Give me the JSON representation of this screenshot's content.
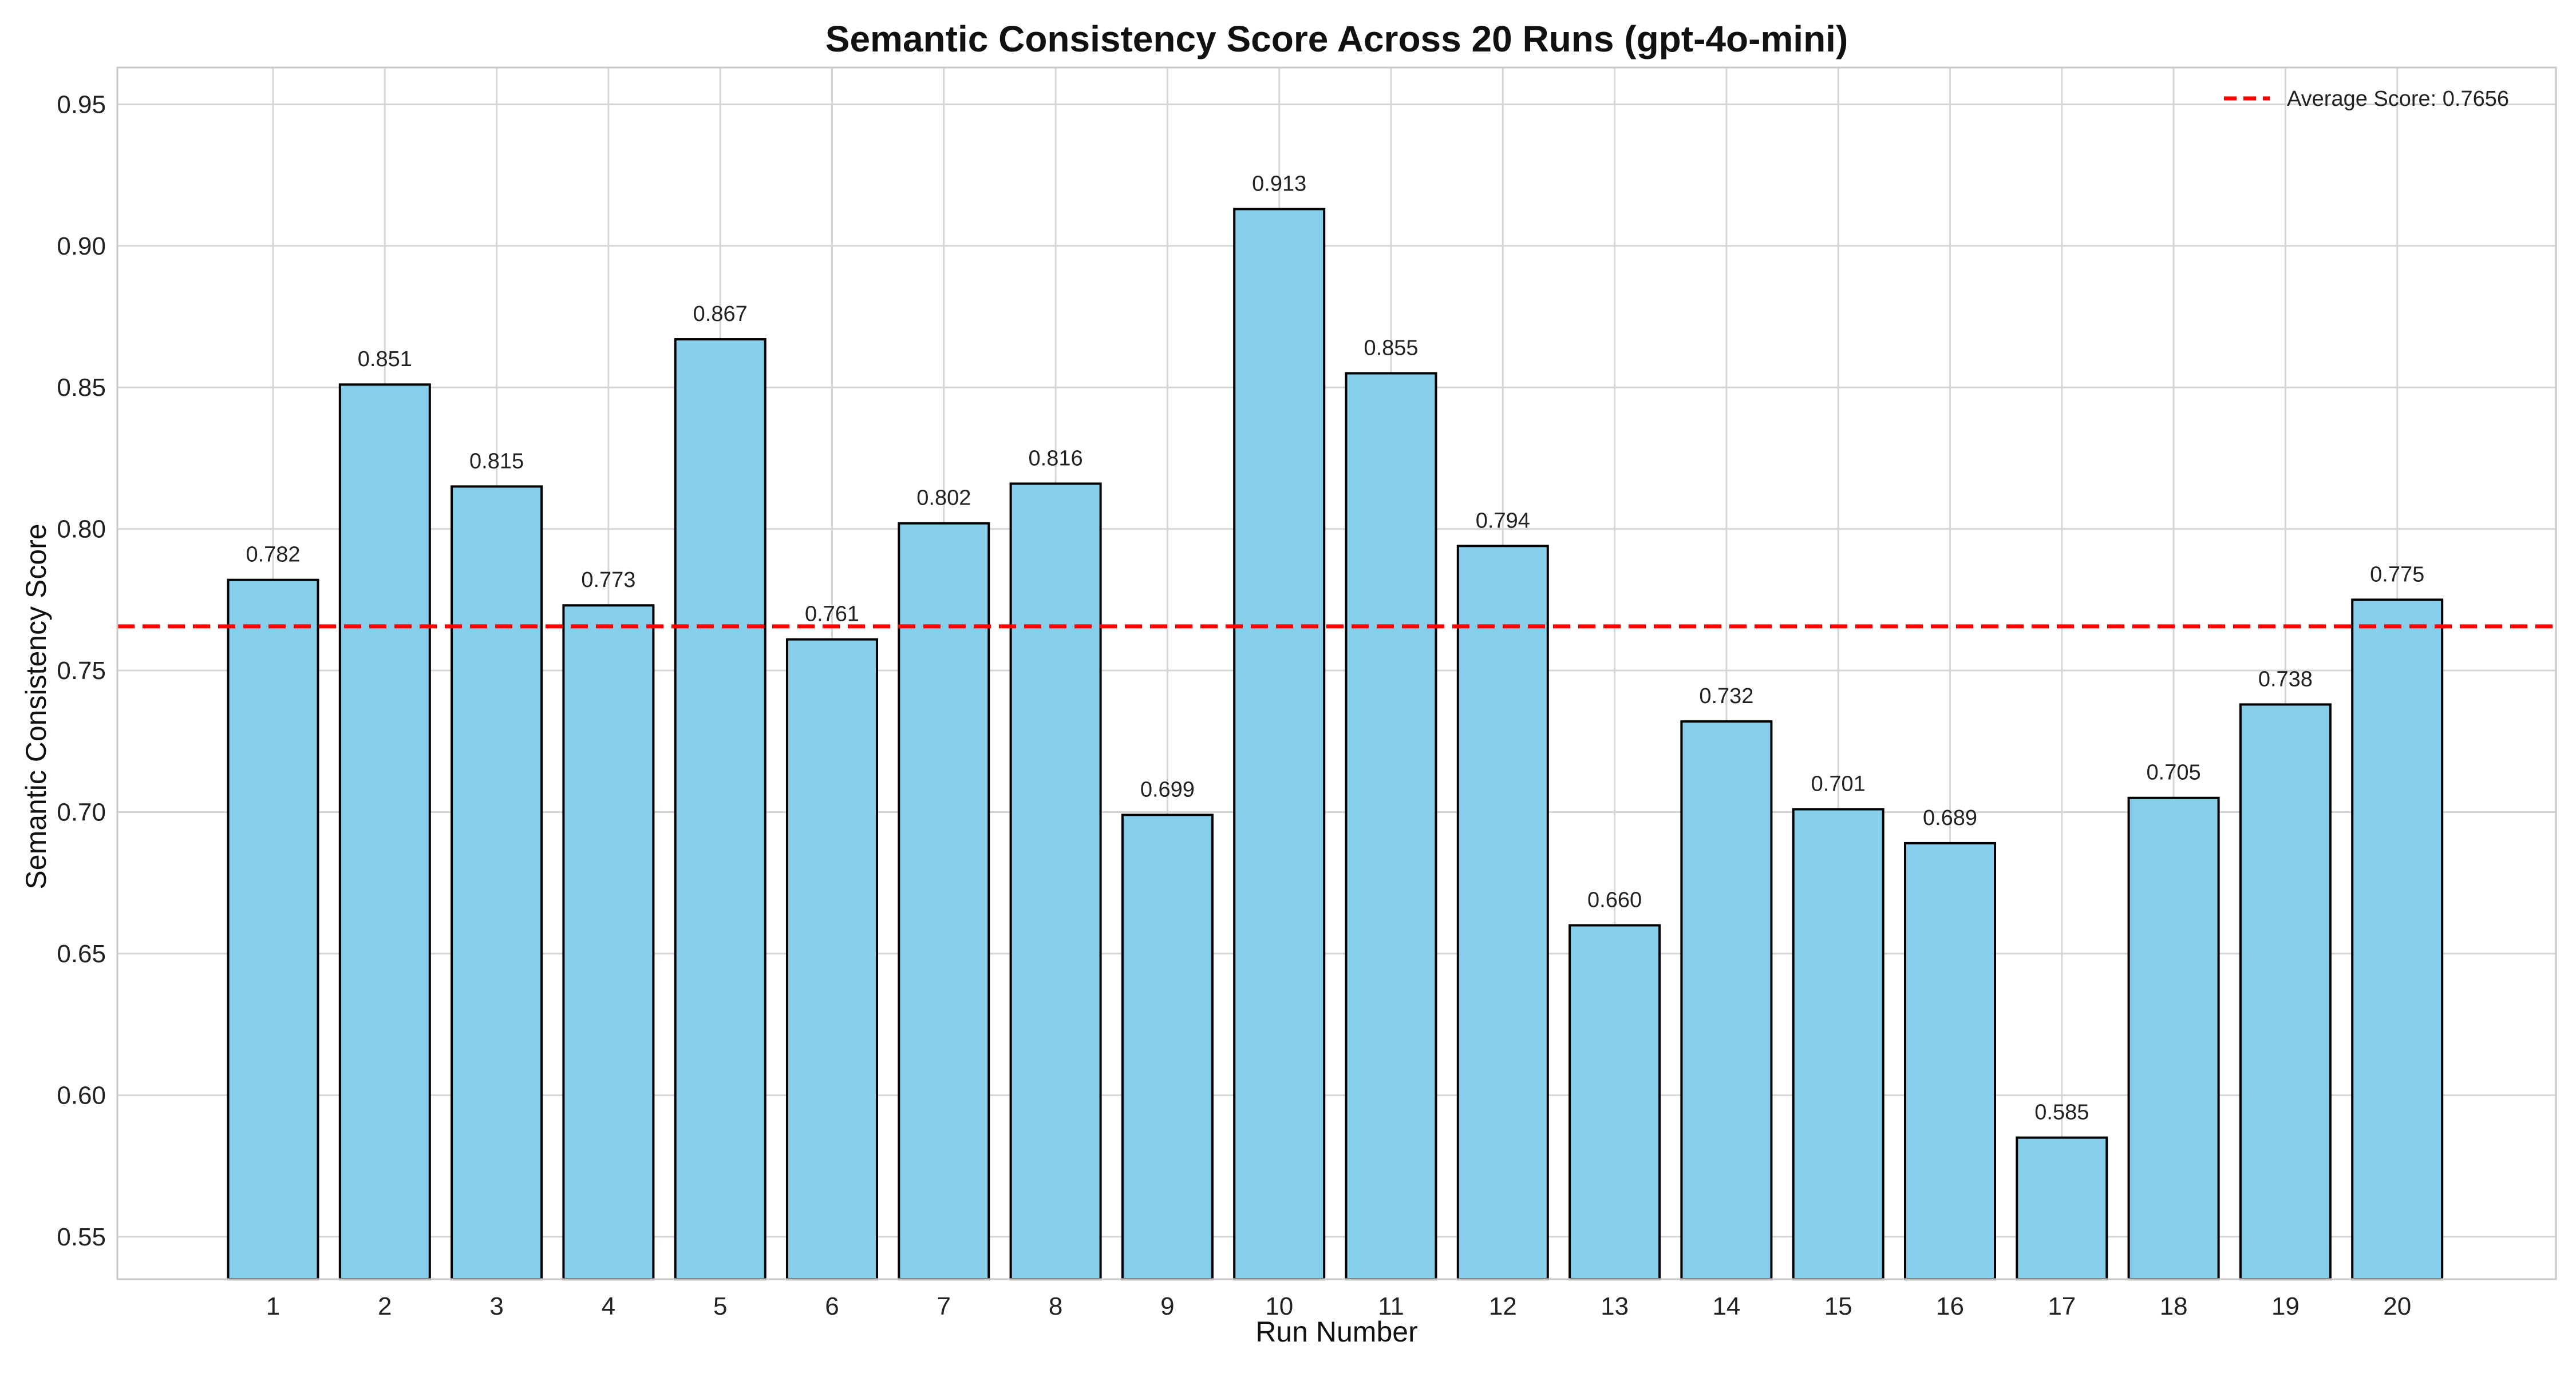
{
  "chart_data": {
    "type": "bar",
    "title": "Semantic Consistency Score Across 20 Runs (gpt-4o-mini)",
    "xlabel": "Run Number",
    "ylabel": "Semantic Consistency Score",
    "categories": [
      "1",
      "2",
      "3",
      "4",
      "5",
      "6",
      "7",
      "8",
      "9",
      "10",
      "11",
      "12",
      "13",
      "14",
      "15",
      "16",
      "17",
      "18",
      "19",
      "20"
    ],
    "values": [
      0.782,
      0.851,
      0.815,
      0.773,
      0.867,
      0.761,
      0.802,
      0.816,
      0.699,
      0.913,
      0.855,
      0.794,
      0.66,
      0.732,
      0.701,
      0.689,
      0.585,
      0.705,
      0.738,
      0.775
    ],
    "value_labels": [
      "0.782",
      "0.851",
      "0.815",
      "0.773",
      "0.867",
      "0.761",
      "0.802",
      "0.816",
      "0.699",
      "0.913",
      "0.855",
      "0.794",
      "0.660",
      "0.732",
      "0.701",
      "0.689",
      "0.585",
      "0.705",
      "0.738",
      "0.775"
    ],
    "ylim": [
      0.535,
      0.963
    ],
    "yticks": [
      0.55,
      0.6,
      0.65,
      0.7,
      0.75,
      0.8,
      0.85,
      0.9,
      0.95
    ],
    "ytick_labels": [
      "0.55",
      "0.60",
      "0.65",
      "0.70",
      "0.75",
      "0.80",
      "0.85",
      "0.90",
      "0.95"
    ],
    "average": {
      "value": 0.7656,
      "label": "Average Score: 0.7656",
      "style": "dashed",
      "color": "#ff0000"
    },
    "grid": true,
    "legend_position": "top-right",
    "colors": {
      "bar_fill": "#87ceeb",
      "bar_edge": "#000000",
      "grid": "#d6d6d6",
      "frame": "#c8c8c8"
    }
  }
}
